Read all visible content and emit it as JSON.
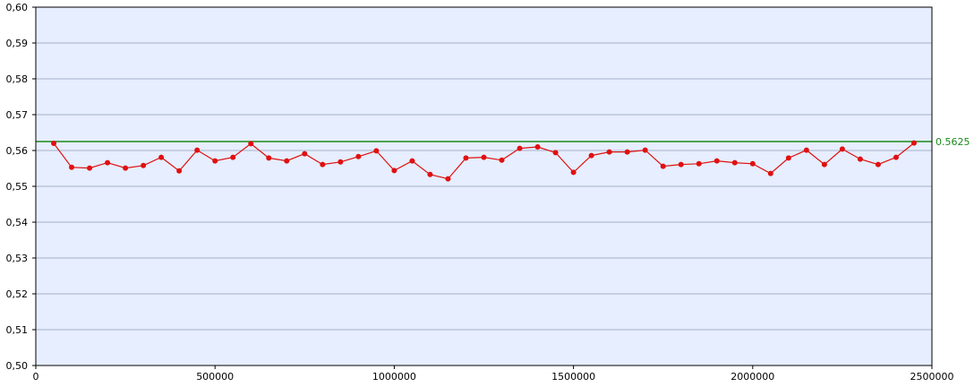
{
  "chart_data": {
    "type": "line",
    "title": "",
    "xlabel": "",
    "ylabel": "",
    "xlim": [
      0,
      2500000
    ],
    "ylim": [
      0.5,
      0.6
    ],
    "grid": true,
    "x_ticks": [
      0,
      500000,
      1000000,
      1500000,
      2000000,
      2500000
    ],
    "x_tick_labels": [
      "0",
      "500000",
      "1000000",
      "1500000",
      "2000000",
      "2500000"
    ],
    "y_ticks": [
      0.5,
      0.51,
      0.52,
      0.53,
      0.54,
      0.55,
      0.56,
      0.57,
      0.58,
      0.59,
      0.6
    ],
    "y_tick_labels": [
      "0,50",
      "0,51",
      "0,52",
      "0,53",
      "0,54",
      "0,55",
      "0,56",
      "0,57",
      "0,58",
      "0,59",
      "0,60"
    ],
    "colors": {
      "plot_background": "#e6eeff",
      "grid": "#a6b3c8",
      "series": "#e01010",
      "reference_line": "#1a8a1a",
      "reference_label": "#1a8a1a",
      "axis": "#000000"
    },
    "series": [
      {
        "x": [
          50000,
          100000,
          150000,
          200000,
          250000,
          300000,
          350000,
          400000,
          450000,
          500000,
          550000,
          600000,
          650000,
          700000,
          750000,
          800000,
          850000,
          900000,
          950000,
          1000000,
          1050000,
          1100000,
          1150000,
          1200000,
          1250000,
          1300000,
          1350000,
          1400000,
          1450000,
          1500000,
          1550000,
          1600000,
          1650000,
          1700000,
          1750000,
          1800000,
          1850000,
          1900000,
          1950000,
          2000000,
          2050000,
          2100000,
          2150000,
          2200000,
          2250000,
          2300000,
          2350000,
          2400000,
          2450000
        ],
        "values": [
          0.562,
          0.5553,
          0.5551,
          0.5566,
          0.5551,
          0.5558,
          0.5581,
          0.5543,
          0.5601,
          0.5571,
          0.5581,
          0.5619,
          0.5579,
          0.5571,
          0.5591,
          0.5561,
          0.5568,
          0.5583,
          0.5599,
          0.5544,
          0.5571,
          0.5533,
          0.5521,
          0.5579,
          0.5581,
          0.5573,
          0.5606,
          0.561,
          0.5594,
          0.5539,
          0.5586,
          0.5596,
          0.5596,
          0.5601,
          0.5556,
          0.5561,
          0.5563,
          0.5571,
          0.5566,
          0.5563,
          0.5536,
          0.5579,
          0.5601,
          0.5561,
          0.5604,
          0.5576,
          0.5561,
          0.5581,
          0.5621
        ]
      }
    ],
    "reference_line": {
      "value": 0.5625,
      "label": "0.5625"
    }
  }
}
